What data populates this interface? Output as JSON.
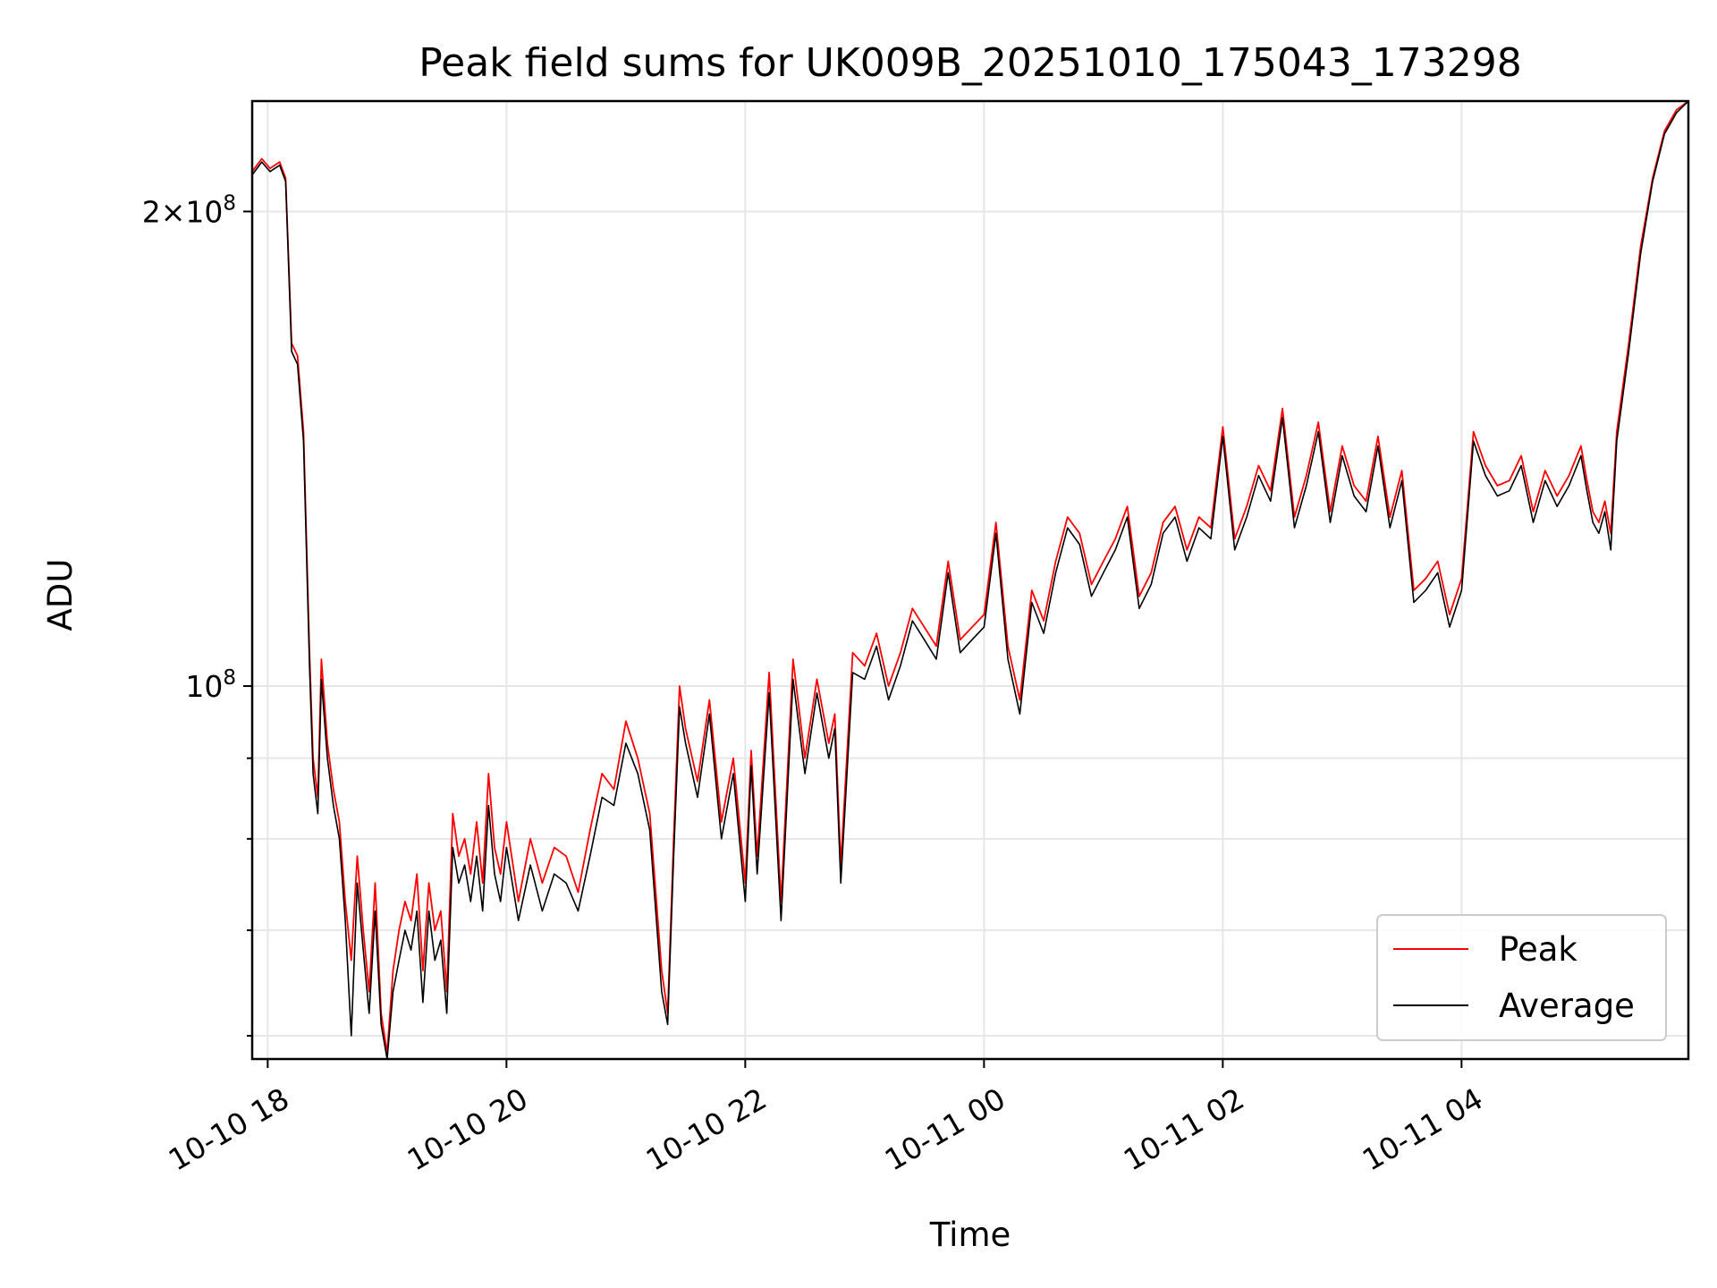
{
  "chart_data": {
    "type": "line",
    "title": "Peak field sums for UK009B_20251010_175043_173298",
    "xlabel": "Time",
    "ylabel": "ADU",
    "x_unit": "hours since 2025-10-10 00:00",
    "xlim": [
      17.87,
      29.9
    ],
    "ylim": [
      58000000,
      235000000
    ],
    "y_scale": "log",
    "grid": true,
    "legend_position": "lower right",
    "x_ticks": [
      {
        "value": 18,
        "label": "10-10 18"
      },
      {
        "value": 20,
        "label": "10-10 20"
      },
      {
        "value": 22,
        "label": "10-10 22"
      },
      {
        "value": 24,
        "label": "10-11 00"
      },
      {
        "value": 26,
        "label": "10-11 02"
      },
      {
        "value": 28,
        "label": "10-11 04"
      }
    ],
    "y_ticks_major": [
      {
        "value": 100000000,
        "base": "10",
        "exp": "8",
        "coef": ""
      },
      {
        "value": 200000000,
        "base": "10",
        "exp": "8",
        "coef": "2"
      }
    ],
    "y_ticks_minor": [
      60000000,
      70000000,
      80000000,
      90000000
    ],
    "series": [
      {
        "name": "Peak",
        "color": "#ff0000",
        "x": [
          17.87,
          17.95,
          18.02,
          18.1,
          18.15,
          18.2,
          18.25,
          18.3,
          18.35,
          18.38,
          18.42,
          18.45,
          18.5,
          18.55,
          18.6,
          18.65,
          18.7,
          18.75,
          18.8,
          18.85,
          18.9,
          18.95,
          19.0,
          19.05,
          19.1,
          19.15,
          19.2,
          19.25,
          19.3,
          19.35,
          19.4,
          19.45,
          19.5,
          19.55,
          19.6,
          19.65,
          19.7,
          19.75,
          19.8,
          19.85,
          19.9,
          19.95,
          20.0,
          20.1,
          20.2,
          20.3,
          20.4,
          20.5,
          20.6,
          20.7,
          20.8,
          20.9,
          21.0,
          21.1,
          21.2,
          21.3,
          21.35,
          21.4,
          21.45,
          21.5,
          21.6,
          21.7,
          21.8,
          21.9,
          22.0,
          22.05,
          22.1,
          22.2,
          22.3,
          22.4,
          22.5,
          22.6,
          22.7,
          22.75,
          22.8,
          22.9,
          23.0,
          23.1,
          23.2,
          23.3,
          23.4,
          23.5,
          23.6,
          23.7,
          23.8,
          23.9,
          24.0,
          24.1,
          24.2,
          24.3,
          24.4,
          24.5,
          24.6,
          24.7,
          24.8,
          24.9,
          25.0,
          25.1,
          25.2,
          25.3,
          25.4,
          25.5,
          25.6,
          25.7,
          25.8,
          25.9,
          26.0,
          26.1,
          26.2,
          26.3,
          26.4,
          26.5,
          26.6,
          26.7,
          26.8,
          26.9,
          27.0,
          27.1,
          27.2,
          27.3,
          27.4,
          27.5,
          27.6,
          27.7,
          27.8,
          27.9,
          28.0,
          28.1,
          28.2,
          28.3,
          28.4,
          28.5,
          28.6,
          28.7,
          28.8,
          28.9,
          29.0,
          29.05,
          29.1,
          29.15,
          29.2,
          29.25,
          29.3,
          29.4,
          29.5,
          29.6,
          29.7,
          29.8,
          29.9
        ],
        "y": [
          212000000,
          216000000,
          213000000,
          215000000,
          210000000,
          165000000,
          162000000,
          145000000,
          105000000,
          90000000,
          85000000,
          104000000,
          92000000,
          86000000,
          82000000,
          73000000,
          67000000,
          78000000,
          70000000,
          64000000,
          75000000,
          62000000,
          58500000,
          66000000,
          70000000,
          73000000,
          71000000,
          76000000,
          66000000,
          75000000,
          70000000,
          72000000,
          64000000,
          83000000,
          78000000,
          80000000,
          76000000,
          82000000,
          75000000,
          88000000,
          79000000,
          76000000,
          82000000,
          73000000,
          80000000,
          75000000,
          79000000,
          78000000,
          74000000,
          81000000,
          88000000,
          86000000,
          95000000,
          90000000,
          83000000,
          66000000,
          62000000,
          80000000,
          100000000,
          94000000,
          87000000,
          98000000,
          82000000,
          90000000,
          75000000,
          91000000,
          78000000,
          102000000,
          73000000,
          104000000,
          90000000,
          101000000,
          92000000,
          96000000,
          77000000,
          105000000,
          103000000,
          108000000,
          100000000,
          105000000,
          112000000,
          109000000,
          106000000,
          120000000,
          107000000,
          109000000,
          111000000,
          127000000,
          106000000,
          98000000,
          115000000,
          110000000,
          120000000,
          128000000,
          125000000,
          116000000,
          120000000,
          124000000,
          130000000,
          114000000,
          118000000,
          127000000,
          130000000,
          122000000,
          128000000,
          126000000,
          146000000,
          124000000,
          130000000,
          138000000,
          133000000,
          150000000,
          128000000,
          136000000,
          147000000,
          129000000,
          142000000,
          134000000,
          131000000,
          144000000,
          128000000,
          137000000,
          115000000,
          117000000,
          120000000,
          111000000,
          117000000,
          145000000,
          138000000,
          134000000,
          135000000,
          140000000,
          129000000,
          137000000,
          132000000,
          136000000,
          142000000,
          135000000,
          129000000,
          127000000,
          131000000,
          125000000,
          145000000,
          165000000,
          190000000,
          210000000,
          225000000,
          232000000,
          235000000
        ]
      },
      {
        "name": "Average",
        "color": "#000000",
        "x": [
          17.87,
          17.95,
          18.02,
          18.1,
          18.15,
          18.2,
          18.25,
          18.3,
          18.35,
          18.38,
          18.42,
          18.45,
          18.5,
          18.55,
          18.6,
          18.65,
          18.7,
          18.75,
          18.8,
          18.85,
          18.9,
          18.95,
          19.0,
          19.05,
          19.1,
          19.15,
          19.2,
          19.25,
          19.3,
          19.35,
          19.4,
          19.45,
          19.5,
          19.55,
          19.6,
          19.65,
          19.7,
          19.75,
          19.8,
          19.85,
          19.9,
          19.95,
          20.0,
          20.1,
          20.2,
          20.3,
          20.4,
          20.5,
          20.6,
          20.7,
          20.8,
          20.9,
          21.0,
          21.1,
          21.2,
          21.3,
          21.35,
          21.4,
          21.45,
          21.5,
          21.6,
          21.7,
          21.8,
          21.9,
          22.0,
          22.05,
          22.1,
          22.2,
          22.3,
          22.4,
          22.5,
          22.6,
          22.7,
          22.75,
          22.8,
          22.9,
          23.0,
          23.1,
          23.2,
          23.3,
          23.4,
          23.5,
          23.6,
          23.7,
          23.8,
          23.9,
          24.0,
          24.1,
          24.2,
          24.3,
          24.4,
          24.5,
          24.6,
          24.7,
          24.8,
          24.9,
          25.0,
          25.1,
          25.2,
          25.3,
          25.4,
          25.5,
          25.6,
          25.7,
          25.8,
          25.9,
          26.0,
          26.1,
          26.2,
          26.3,
          26.4,
          26.5,
          26.6,
          26.7,
          26.8,
          26.9,
          27.0,
          27.1,
          27.2,
          27.3,
          27.4,
          27.5,
          27.6,
          27.7,
          27.8,
          27.9,
          28.0,
          28.1,
          28.2,
          28.3,
          28.4,
          28.5,
          28.6,
          28.7,
          28.8,
          28.9,
          29.0,
          29.05,
          29.1,
          29.15,
          29.2,
          29.25,
          29.3,
          29.4,
          29.5,
          29.6,
          29.7,
          29.8,
          29.9
        ],
        "y": [
          211000000,
          215000000,
          212000000,
          214000000,
          209000000,
          163000000,
          160000000,
          143000000,
          103000000,
          88000000,
          83000000,
          101000000,
          90000000,
          84000000,
          80000000,
          71000000,
          60000000,
          75000000,
          68000000,
          62000000,
          72000000,
          61000000,
          58000000,
          64000000,
          67000000,
          70000000,
          68000000,
          72000000,
          63000000,
          72000000,
          67000000,
          69000000,
          62000000,
          79000000,
          75000000,
          77000000,
          73000000,
          78000000,
          72000000,
          84000000,
          76000000,
          73000000,
          79000000,
          71000000,
          77000000,
          72000000,
          76000000,
          75000000,
          72000000,
          78000000,
          85000000,
          84000000,
          92000000,
          88000000,
          81000000,
          64000000,
          61000000,
          78000000,
          97000000,
          92000000,
          85000000,
          96000000,
          80000000,
          88000000,
          73000000,
          89000000,
          76000000,
          99000000,
          71000000,
          101000000,
          88000000,
          99000000,
          90000000,
          94000000,
          75000000,
          102000000,
          101000000,
          106000000,
          98000000,
          103000000,
          110000000,
          107000000,
          104000000,
          118000000,
          105000000,
          107000000,
          109000000,
          125000000,
          104000000,
          96000000,
          113000000,
          108000000,
          118000000,
          126000000,
          123000000,
          114000000,
          118000000,
          122000000,
          128000000,
          112000000,
          116000000,
          125000000,
          128000000,
          120000000,
          126000000,
          124000000,
          144000000,
          122000000,
          128000000,
          136000000,
          131000000,
          148000000,
          126000000,
          134000000,
          145000000,
          127000000,
          140000000,
          132000000,
          129000000,
          142000000,
          126000000,
          135000000,
          113000000,
          115000000,
          118000000,
          109000000,
          115000000,
          143000000,
          136000000,
          132000000,
          133000000,
          138000000,
          127000000,
          135000000,
          130000000,
          134000000,
          140000000,
          133000000,
          127000000,
          125000000,
          129000000,
          122000000,
          143000000,
          163000000,
          188000000,
          209000000,
          224000000,
          231000000,
          235000000
        ]
      }
    ]
  }
}
